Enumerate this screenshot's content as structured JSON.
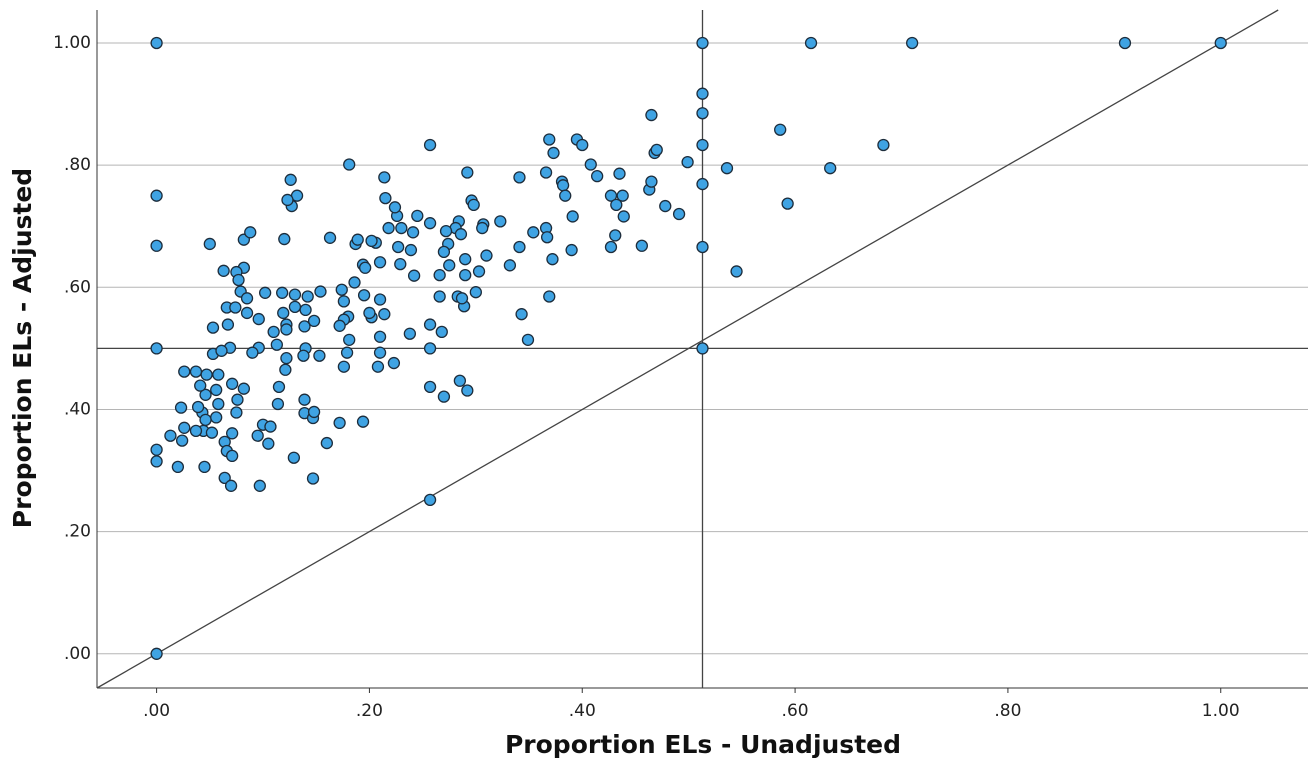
{
  "chart_data": {
    "type": "scatter",
    "x_label": "Proportion ELs - Unadjusted",
    "y_label": "Proportion ELs - Adjusted",
    "xlim": [
      -0.056,
      1.082
    ],
    "ylim": [
      -0.056,
      1.054
    ],
    "xticks": [
      {
        "value": 0,
        "label": ".00"
      },
      {
        "value": 0.2,
        "label": ".20"
      },
      {
        "value": 0.4,
        "label": ".40"
      },
      {
        "value": 0.6,
        "label": ".60"
      },
      {
        "value": 0.8,
        "label": ".80"
      },
      {
        "value": 1,
        "label": "1.00"
      }
    ],
    "yticks": [
      {
        "value": 0,
        "label": ".00"
      },
      {
        "value": 0.2,
        "label": ".20"
      },
      {
        "value": 0.4,
        "label": ".40"
      },
      {
        "value": 0.6,
        "label": ".60"
      },
      {
        "value": 0.8,
        "label": ".80"
      },
      {
        "value": 1,
        "label": "1.00"
      }
    ],
    "grid": true,
    "ref_x": 0.513,
    "ref_y": 0.5,
    "diagonal": true,
    "color": "#3fa3e3",
    "edge_color": "#1d2d3c",
    "x": [
      0,
      0.513,
      0.615,
      0.71,
      0.91,
      1.0,
      0.513,
      0.513,
      0.513,
      0.513,
      0.513,
      0.513,
      0,
      0,
      0,
      0,
      0,
      0,
      0.257,
      0.586,
      0.683,
      0.633,
      0.536,
      0.593,
      0.545,
      0.499,
      0.465,
      0.468,
      0.47,
      0.463,
      0.465,
      0.478,
      0.491,
      0.456,
      0.435,
      0.438,
      0.439,
      0.427,
      0.431,
      0.427,
      0.432,
      0.408,
      0.414,
      0.395,
      0.4,
      0.369,
      0.373,
      0.366,
      0.381,
      0.382,
      0.384,
      0.391,
      0.366,
      0.367,
      0.372,
      0.369,
      0.39,
      0.354,
      0.341,
      0.341,
      0.343,
      0.349,
      0.332,
      0.323,
      0.307,
      0.306,
      0.31,
      0.303,
      0.3,
      0.292,
      0.296,
      0.298,
      0.29,
      0.29,
      0.284,
      0.281,
      0.286,
      0.272,
      0.274,
      0.27,
      0.275,
      0.266,
      0.283,
      0.289,
      0.287,
      0.266,
      0.268,
      0.257,
      0.257,
      0.257,
      0.27,
      0.285,
      0.292,
      0.257,
      0.257,
      0.245,
      0.241,
      0.239,
      0.242,
      0.23,
      0.226,
      0.227,
      0.229,
      0.238,
      0.224,
      0.218,
      0.214,
      0.215,
      0.21,
      0.206,
      0.202,
      0.21,
      0.202,
      0.195,
      0.187,
      0.186,
      0.181,
      0.174,
      0.176,
      0.18,
      0.176,
      0.181,
      0.172,
      0.179,
      0.176,
      0.172,
      0.163,
      0.154,
      0.148,
      0.142,
      0.14,
      0.139,
      0.14,
      0.138,
      0.132,
      0.127,
      0.126,
      0.123,
      0.12,
      0.118,
      0.119,
      0.13,
      0.13,
      0.122,
      0.122,
      0.122,
      0.121,
      0.115,
      0.114,
      0.113,
      0.11,
      0.102,
      0.1,
      0.082,
      0.082,
      0.079,
      0.085,
      0.088,
      0.066,
      0.067,
      0.069,
      0.071,
      0.082,
      0.076,
      0.075,
      0.071,
      0.064,
      0.053,
      0.053,
      0.061,
      0.047,
      0.058,
      0.056,
      0.046,
      0.058,
      0.043,
      0.056,
      0.046,
      0.044,
      0.052,
      0.064,
      0.066,
      0.071,
      0.045,
      0.024,
      0.023,
      0.026,
      0.02,
      0.013,
      0.026,
      0.037,
      0.041,
      0.039,
      0.037,
      0.05,
      0.063,
      0.075,
      0.077,
      0.074,
      0.085,
      0.096,
      0.096,
      0.09,
      0.097,
      0.07,
      0.107,
      0.095,
      0.105,
      0.129,
      0.147,
      0.139,
      0.139,
      0.147,
      0.153,
      0.148,
      0.16,
      0.189,
      0.194,
      0.196,
      0.2,
      0.194,
      0.21,
      0.214,
      0.223,
      0.208,
      0.21
    ],
    "y": [
      1.0,
      1.0,
      1.0,
      1.0,
      1.0,
      1.0,
      0.917,
      0.885,
      0.833,
      0.769,
      0.666,
      0.5,
      0.75,
      0.668,
      0.5,
      0.334,
      0.315,
      0,
      0.252,
      0.858,
      0.833,
      0.795,
      0.795,
      0.737,
      0.626,
      0.805,
      0.882,
      0.82,
      0.825,
      0.76,
      0.773,
      0.733,
      0.72,
      0.668,
      0.786,
      0.75,
      0.716,
      0.666,
      0.685,
      0.75,
      0.735,
      0.801,
      0.782,
      0.842,
      0.833,
      0.842,
      0.82,
      0.788,
      0.773,
      0.767,
      0.75,
      0.716,
      0.697,
      0.682,
      0.646,
      0.585,
      0.661,
      0.69,
      0.78,
      0.666,
      0.556,
      0.514,
      0.636,
      0.708,
      0.703,
      0.697,
      0.652,
      0.626,
      0.592,
      0.788,
      0.742,
      0.735,
      0.646,
      0.62,
      0.708,
      0.697,
      0.687,
      0.692,
      0.671,
      0.658,
      0.636,
      0.62,
      0.585,
      0.569,
      0.582,
      0.585,
      0.527,
      0.539,
      0.5,
      0.437,
      0.421,
      0.447,
      0.431,
      0.705,
      0.833,
      0.717,
      0.69,
      0.661,
      0.619,
      0.697,
      0.717,
      0.666,
      0.638,
      0.524,
      0.731,
      0.697,
      0.78,
      0.746,
      0.641,
      0.673,
      0.676,
      0.58,
      0.551,
      0.587,
      0.671,
      0.608,
      0.801,
      0.596,
      0.577,
      0.552,
      0.547,
      0.514,
      0.537,
      0.493,
      0.47,
      0.378,
      0.681,
      0.593,
      0.545,
      0.585,
      0.563,
      0.536,
      0.5,
      0.488,
      0.75,
      0.733,
      0.776,
      0.743,
      0.679,
      0.591,
      0.558,
      0.588,
      0.568,
      0.539,
      0.531,
      0.484,
      0.465,
      0.437,
      0.409,
      0.506,
      0.527,
      0.591,
      0.375,
      0.678,
      0.632,
      0.593,
      0.582,
      0.69,
      0.567,
      0.539,
      0.501,
      0.442,
      0.434,
      0.416,
      0.395,
      0.361,
      0.288,
      0.534,
      0.491,
      0.496,
      0.457,
      0.457,
      0.432,
      0.424,
      0.409,
      0.395,
      0.387,
      0.383,
      0.365,
      0.362,
      0.347,
      0.332,
      0.324,
      0.306,
      0.349,
      0.403,
      0.37,
      0.306,
      0.357,
      0.462,
      0.462,
      0.439,
      0.404,
      0.365,
      0.671,
      0.627,
      0.625,
      0.612,
      0.567,
      0.558,
      0.548,
      0.501,
      0.493,
      0.275,
      0.275,
      0.372,
      0.357,
      0.344,
      0.321,
      0.287,
      0.416,
      0.394,
      0.386,
      0.488,
      0.396,
      0.345,
      0.678,
      0.637,
      0.632,
      0.558,
      0.38,
      0.493,
      0.556,
      0.476,
      0.47,
      0.519
    ]
  }
}
